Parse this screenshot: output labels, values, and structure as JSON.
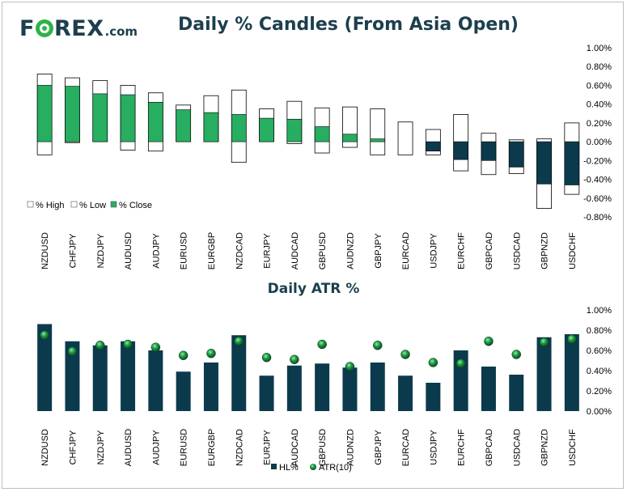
{
  "brand": {
    "name_prefix": "F",
    "name_suffix": "REX",
    "domain": ".com"
  },
  "colors": {
    "green": "#27ae60",
    "navy": "#0b3a4c",
    "title": "#1d3f4d"
  },
  "chart_data": [
    {
      "type": "candle",
      "title": "Daily % Candles (From Asia Open)",
      "ylim": [
        -0.8,
        1.0
      ],
      "yticks": [
        1.0,
        0.8,
        0.6,
        0.4,
        0.2,
        0.0,
        -0.2,
        -0.4,
        -0.6,
        -0.8
      ],
      "ytick_labels": [
        "1.00%",
        "0.80%",
        "0.60%",
        "0.40%",
        "0.20%",
        "0.00%",
        "-0.20%",
        "-0.40%",
        "-0.60%",
        "-0.80%"
      ],
      "categories": [
        "NZDUSD",
        "CHFJPY",
        "NZDJPY",
        "AUDUSD",
        "AUDJPY",
        "EURUSD",
        "EURGBP",
        "NZDCAD",
        "EURJPY",
        "AUDCAD",
        "GBPUSD",
        "AUDNZD",
        "GBPJPY",
        "EURCAD",
        "USDJPY",
        "EURCHF",
        "GBPCAD",
        "USDCAD",
        "GBPNZD",
        "USDCHF"
      ],
      "series": [
        {
          "name": "% High",
          "values": [
            0.72,
            0.68,
            0.65,
            0.6,
            0.52,
            0.39,
            0.49,
            0.55,
            0.35,
            0.43,
            0.36,
            0.37,
            0.35,
            0.21,
            0.13,
            0.29,
            0.09,
            0.02,
            0.03,
            0.2
          ]
        },
        {
          "name": "% Low",
          "values": [
            -0.14,
            -0.01,
            0.0,
            -0.09,
            -0.1,
            0.0,
            0.0,
            -0.22,
            0.0,
            -0.02,
            -0.12,
            -0.06,
            -0.14,
            -0.14,
            -0.14,
            -0.31,
            -0.35,
            -0.34,
            -0.71,
            -0.56
          ]
        },
        {
          "name": "% Close",
          "values": [
            0.6,
            0.59,
            0.51,
            0.5,
            0.42,
            0.34,
            0.31,
            0.29,
            0.25,
            0.24,
            0.16,
            0.08,
            0.03,
            0.0,
            -0.1,
            -0.19,
            -0.2,
            -0.27,
            -0.45,
            -0.46
          ]
        }
      ],
      "legend": [
        "% High",
        "% Low",
        "% Close"
      ]
    },
    {
      "type": "bar",
      "title": "Daily ATR %",
      "ylim": [
        0.0,
        1.0
      ],
      "yticks": [
        1.0,
        0.8,
        0.6,
        0.4,
        0.2,
        0.0
      ],
      "ytick_labels": [
        "1.00%",
        "0.80%",
        "0.60%",
        "0.40%",
        "0.20%",
        "0.00%"
      ],
      "categories": [
        "NZDUSD",
        "CHFJPY",
        "NZDJPY",
        "AUDUSD",
        "AUDJPY",
        "EURUSD",
        "EURGBP",
        "NZDCAD",
        "EURJPY",
        "AUDCAD",
        "GBPUSD",
        "AUDNZD",
        "GBPJPY",
        "EURCAD",
        "USDJPY",
        "EURCHF",
        "GBPCAD",
        "USDCAD",
        "GBPNZD",
        "USDCHF"
      ],
      "series": [
        {
          "name": "HL%",
          "values": [
            0.86,
            0.69,
            0.65,
            0.69,
            0.6,
            0.39,
            0.48,
            0.75,
            0.35,
            0.45,
            0.47,
            0.43,
            0.48,
            0.35,
            0.28,
            0.6,
            0.44,
            0.36,
            0.73,
            0.76
          ]
        },
        {
          "name": "ATR(10)",
          "values": [
            0.75,
            0.59,
            0.65,
            0.66,
            0.63,
            0.55,
            0.57,
            0.69,
            0.53,
            0.51,
            0.66,
            0.44,
            0.65,
            0.56,
            0.48,
            0.47,
            0.69,
            0.56,
            0.68,
            0.71
          ]
        }
      ],
      "legend": [
        "HL%",
        "ATR(10)"
      ]
    }
  ]
}
